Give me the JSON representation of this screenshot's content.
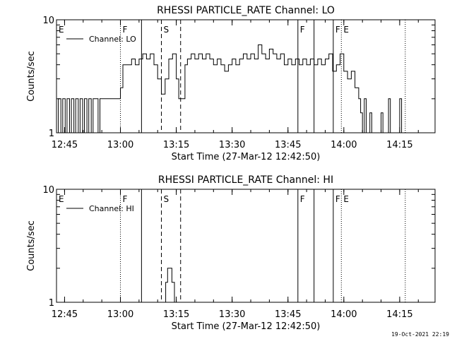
{
  "footer": {
    "timestamp": "19-Oct-2021 22:19"
  },
  "chart_data": [
    {
      "type": "line",
      "title": "RHESSI PARTICLE_RATE Channel: LO",
      "xlabel": "Start Time (27-Mar-12 12:42:50)",
      "ylabel": "Counts/sec",
      "y_scale": "log",
      "ylim": [
        1,
        10
      ],
      "y_ticks": [
        "1",
        "10"
      ],
      "xlim": [
        "12:42:50",
        "14:24:30"
      ],
      "x_ticks": [
        "12:45",
        "13:00",
        "13:15",
        "13:30",
        "13:45",
        "14:00",
        "14:15"
      ],
      "legend": {
        "label": "Channel: LO",
        "position": "top-left"
      },
      "markers": [
        {
          "label": "E",
          "time": "12:42:50",
          "style": "solid"
        },
        {
          "label": "F",
          "time": "13:00:00",
          "style": "dotted"
        },
        {
          "label": "",
          "time": "13:05:40",
          "style": "solid"
        },
        {
          "label": "S",
          "time": "13:11:00",
          "style": "dashed"
        },
        {
          "label": "",
          "time": "13:16:10",
          "style": "dashed"
        },
        {
          "label": "F",
          "time": "13:47:40",
          "style": "solid"
        },
        {
          "label": "",
          "time": "13:52:00",
          "style": "solid"
        },
        {
          "label": "F",
          "time": "13:57:10",
          "style": "solid"
        },
        {
          "label": "E",
          "time": "13:59:20",
          "style": "dotted"
        },
        {
          "label": "",
          "time": "14:16:30",
          "style": "dotted"
        }
      ],
      "series": [
        {
          "name": "Channel: LO",
          "segments": [
            [
              [
                "12:42:50",
                1
              ],
              [
                "12:43:20",
                2
              ],
              [
                "12:44:00",
                1
              ],
              [
                "12:44:30",
                2
              ],
              [
                "12:45:10",
                1
              ],
              [
                "12:45:40",
                2
              ],
              [
                "12:46:20",
                1
              ],
              [
                "12:46:50",
                2
              ],
              [
                "12:47:30",
                1
              ],
              [
                "12:48:00",
                2
              ],
              [
                "12:48:40",
                1
              ],
              [
                "12:49:10",
                2
              ],
              [
                "12:49:50",
                1
              ],
              [
                "12:50:20",
                2
              ],
              [
                "12:51:00",
                1
              ],
              [
                "12:51:30",
                2
              ],
              [
                "12:52:10",
                1
              ],
              [
                "12:52:40",
                2
              ],
              [
                "12:53:20",
                2
              ],
              [
                "12:54:00",
                1
              ],
              [
                "12:54:30",
                2
              ],
              [
                "12:55:10",
                2
              ],
              [
                "12:56:00",
                2
              ],
              [
                "12:57:00",
                2
              ],
              [
                "12:58:00",
                2
              ],
              [
                "12:59:00",
                2
              ],
              [
                "13:00:00",
                2.5
              ],
              [
                "13:00:40",
                4
              ],
              [
                "13:02:00",
                4
              ],
              [
                "13:03:00",
                4.5
              ],
              [
                "13:04:00",
                4
              ],
              [
                "13:05:00",
                4.5
              ],
              [
                "13:06:00",
                5
              ],
              [
                "13:07:00",
                4.5
              ],
              [
                "13:08:00",
                5
              ],
              [
                "13:09:00",
                4
              ],
              [
                "13:10:00",
                3
              ],
              [
                "13:11:00",
                2.2
              ],
              [
                "13:12:00",
                3
              ],
              [
                "13:13:00",
                4.5
              ],
              [
                "13:14:00",
                5
              ],
              [
                "13:15:00",
                3
              ],
              [
                "13:15:40",
                2
              ],
              [
                "13:16:30",
                2
              ],
              [
                "13:17:20",
                4
              ],
              [
                "13:18:00",
                4.5
              ],
              [
                "13:19:00",
                5
              ],
              [
                "13:20:00",
                4.5
              ],
              [
                "13:21:00",
                5
              ],
              [
                "13:22:00",
                4.5
              ],
              [
                "13:23:00",
                5
              ],
              [
                "13:24:00",
                4.5
              ],
              [
                "13:25:00",
                4
              ],
              [
                "13:26:00",
                4.5
              ],
              [
                "13:27:00",
                4
              ],
              [
                "13:28:00",
                3.5
              ],
              [
                "13:29:00",
                4
              ],
              [
                "13:30:00",
                4.5
              ],
              [
                "13:31:00",
                4
              ],
              [
                "13:32:00",
                4.5
              ],
              [
                "13:33:00",
                5
              ],
              [
                "13:34:00",
                4.5
              ],
              [
                "13:35:00",
                5
              ],
              [
                "13:36:00",
                4.5
              ],
              [
                "13:37:00",
                6
              ],
              [
                "13:38:00",
                5
              ],
              [
                "13:39:00",
                4.5
              ],
              [
                "13:40:00",
                5.5
              ],
              [
                "13:41:00",
                5
              ],
              [
                "13:42:00",
                4.5
              ],
              [
                "13:43:00",
                5
              ],
              [
                "13:44:00",
                4
              ],
              [
                "13:45:00",
                4.5
              ],
              [
                "13:46:00",
                4
              ],
              [
                "13:47:00",
                4.5
              ],
              [
                "13:48:00",
                4
              ],
              [
                "13:49:00",
                4.5
              ],
              [
                "13:50:00",
                4
              ],
              [
                "13:51:00",
                4.5
              ],
              [
                "13:52:00",
                4
              ],
              [
                "13:53:00",
                4.5
              ],
              [
                "13:54:00",
                4
              ],
              [
                "13:55:00",
                4.5
              ],
              [
                "13:56:00",
                5
              ],
              [
                "13:57:00",
                3.5
              ],
              [
                "13:58:00",
                4
              ],
              [
                "13:59:00",
                5
              ],
              [
                "14:00:00",
                3.5
              ],
              [
                "14:01:00",
                3
              ],
              [
                "14:02:00",
                3.5
              ],
              [
                "14:03:00",
                2.5
              ],
              [
                "14:04:00",
                2
              ],
              [
                "14:04:30",
                1.5
              ],
              [
                "14:05:00",
                1
              ],
              [
                "14:05:30",
                2
              ],
              [
                "14:06:00",
                1
              ],
              [
                "14:06:30",
                1
              ],
              [
                "14:07:00",
                1.5
              ],
              [
                "14:07:30",
                1
              ],
              [
                "14:08:00",
                1
              ],
              [
                "14:09:00",
                1
              ],
              [
                "14:10:00",
                1.5
              ],
              [
                "14:10:30",
                1
              ],
              [
                "14:11:00",
                1
              ],
              [
                "14:12:00",
                2
              ],
              [
                "14:12:30",
                1
              ],
              [
                "14:13:00",
                1
              ],
              [
                "14:14:00",
                1
              ],
              [
                "14:15:00",
                2
              ],
              [
                "14:15:30",
                1
              ]
            ]
          ]
        }
      ]
    },
    {
      "type": "line",
      "title": "RHESSI PARTICLE_RATE Channel: HI",
      "xlabel": "Start Time (27-Mar-12 12:42:50)",
      "ylabel": "Counts/sec",
      "y_scale": "log",
      "ylim": [
        1,
        10
      ],
      "y_ticks": [
        "1",
        "10"
      ],
      "xlim": [
        "12:42:50",
        "14:24:30"
      ],
      "x_ticks": [
        "12:45",
        "13:00",
        "13:15",
        "13:30",
        "13:45",
        "14:00",
        "14:15"
      ],
      "legend": {
        "label": "Channel: HI",
        "position": "top-left"
      },
      "markers": [
        {
          "label": "E",
          "time": "12:42:50",
          "style": "solid"
        },
        {
          "label": "F",
          "time": "13:00:00",
          "style": "dotted"
        },
        {
          "label": "",
          "time": "13:05:40",
          "style": "solid"
        },
        {
          "label": "S",
          "time": "13:11:00",
          "style": "dashed"
        },
        {
          "label": "",
          "time": "13:16:10",
          "style": "dashed"
        },
        {
          "label": "F",
          "time": "13:47:40",
          "style": "solid"
        },
        {
          "label": "",
          "time": "13:52:00",
          "style": "solid"
        },
        {
          "label": "F",
          "time": "13:57:10",
          "style": "solid"
        },
        {
          "label": "E",
          "time": "13:59:20",
          "style": "dotted"
        },
        {
          "label": "",
          "time": "14:16:30",
          "style": "dotted"
        }
      ],
      "series": [
        {
          "name": "Channel: HI",
          "segments": [
            [
              [
                "13:11:40",
                1
              ],
              [
                "13:12:10",
                1.5
              ],
              [
                "13:12:40",
                2
              ],
              [
                "13:13:20",
                2
              ],
              [
                "13:13:50",
                1.5
              ],
              [
                "13:14:30",
                1
              ]
            ]
          ]
        }
      ]
    }
  ]
}
